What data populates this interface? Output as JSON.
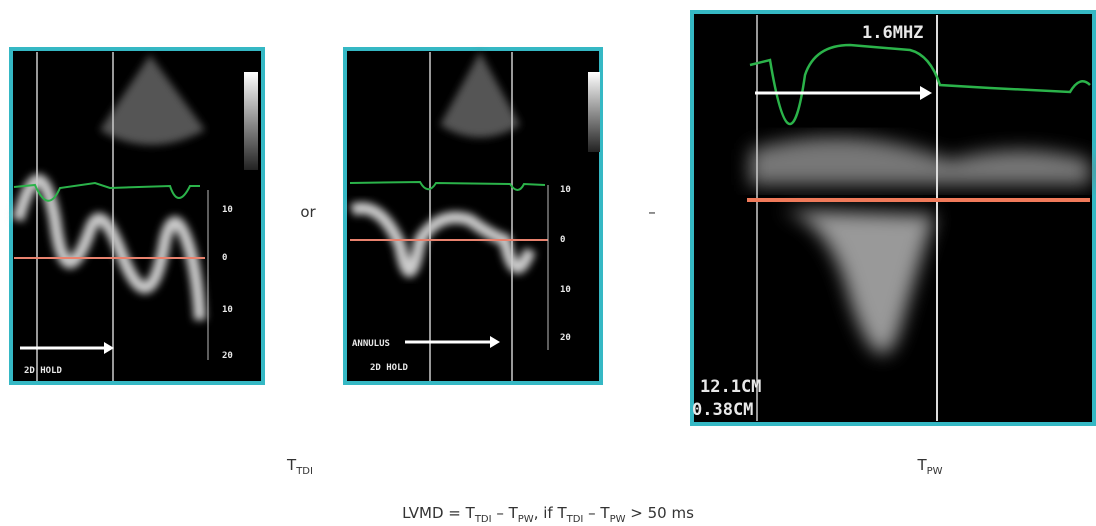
{
  "panels": [
    {
      "texts": [
        "2D HOLD"
      ],
      "scale": [
        "10",
        "0",
        "10",
        "20"
      ]
    },
    {
      "texts": [
        "ANNULUS",
        "2D HOLD"
      ],
      "scale": [
        "10",
        "0",
        "10",
        "20"
      ]
    },
    {
      "texts": [
        "1.6MHZ",
        "12.1CM",
        "0.38CM"
      ]
    }
  ],
  "separators": [
    "or",
    "–"
  ],
  "labels": [
    {
      "main": "T",
      "sub": "TDI"
    },
    {
      "main": "T",
      "sub": "PW"
    }
  ],
  "formula": [
    {
      "text": "LVMD = T"
    },
    {
      "sub": "TDI"
    },
    {
      "text": " – T"
    },
    {
      "sub": "PW"
    },
    {
      "text": ", if T"
    },
    {
      "sub": "TDI"
    },
    {
      "text": " – T"
    },
    {
      "sub": "PW"
    },
    {
      "text": " > 50 ms"
    }
  ]
}
